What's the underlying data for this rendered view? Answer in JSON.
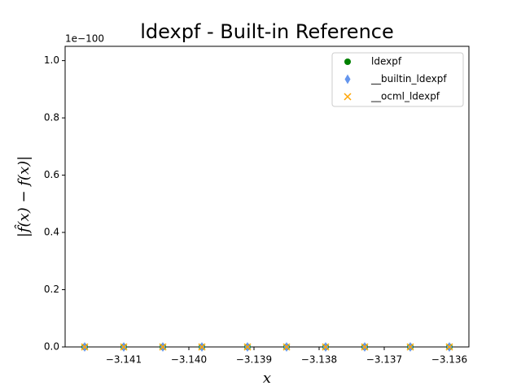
{
  "chart_data": {
    "type": "scatter",
    "title": "ldexpf - Built-in Reference",
    "x_label": "x",
    "y_label": "|f̂(x) − f(x)|",
    "y_offset_label": "1e−100",
    "x": [
      -3.1416,
      -3.141,
      -3.1404,
      -3.1398,
      -3.1391,
      -3.1385,
      -3.1379,
      -3.1373,
      -3.1366,
      -3.136
    ],
    "series": [
      {
        "name": "ldexpf",
        "color": "green",
        "marker": "o",
        "values": [
          0,
          0,
          0,
          0,
          0,
          0,
          0,
          0,
          0,
          0
        ]
      },
      {
        "name": "__builtin_ldexpf",
        "color": "#6495ed",
        "marker": "d",
        "values": [
          0,
          0,
          0,
          0,
          0,
          0,
          0,
          0,
          0,
          0
        ]
      },
      {
        "name": "__ocml_ldexpf",
        "color": "orange",
        "marker": "x",
        "values": [
          0,
          0,
          0,
          0,
          0,
          0,
          0,
          0,
          0,
          0
        ]
      }
    ],
    "xlim": [
      -3.1419,
      -3.1357
    ],
    "ylim": [
      0,
      1.05
    ],
    "xticks": [
      {
        "value": -3.141,
        "label": "−3.141"
      },
      {
        "value": -3.14,
        "label": "−3.140"
      },
      {
        "value": -3.139,
        "label": "−3.139"
      },
      {
        "value": -3.138,
        "label": "−3.138"
      },
      {
        "value": -3.137,
        "label": "−3.137"
      },
      {
        "value": -3.136,
        "label": "−3.136"
      }
    ],
    "yticks": [
      {
        "value": 0,
        "label": "0.0"
      },
      {
        "value": 0.2,
        "label": "0.2"
      },
      {
        "value": 0.4,
        "label": "0.4"
      },
      {
        "value": 0.6,
        "label": "0.6"
      },
      {
        "value": 0.8,
        "label": "0.8"
      },
      {
        "value": 1,
        "label": "1.0"
      }
    ],
    "legend": "upper right"
  }
}
